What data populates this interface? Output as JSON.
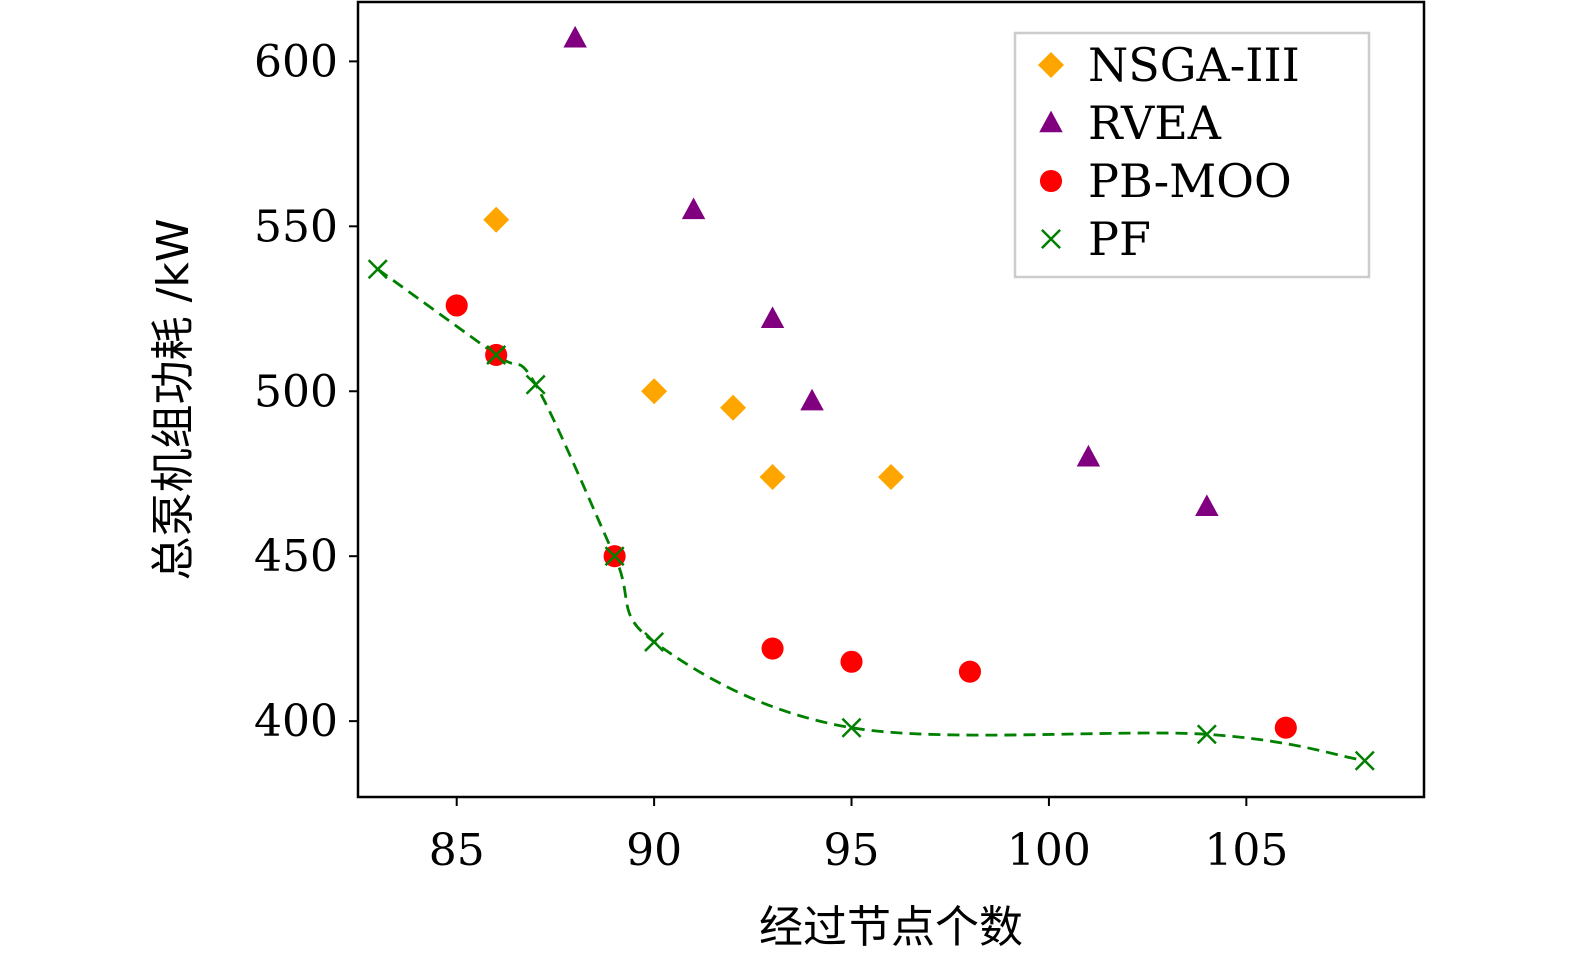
{
  "chart_data": {
    "type": "scatter",
    "xlabel": "经过节点个数",
    "ylabel": "总泵机组功耗 /kW",
    "xlim": [
      82.5,
      109.5
    ],
    "ylim": [
      377,
      618
    ],
    "xticks": [
      85,
      90,
      95,
      100,
      105
    ],
    "yticks": [
      400,
      450,
      500,
      550,
      600
    ],
    "grid": false,
    "legend_position": "top-right",
    "series": [
      {
        "name": "NSGA-III",
        "marker": "diamond",
        "color": "#ffa500",
        "points": [
          [
            86,
            552
          ],
          [
            90,
            500
          ],
          [
            92,
            495
          ],
          [
            93,
            474
          ],
          [
            96,
            474
          ]
        ]
      },
      {
        "name": "RVEA",
        "marker": "triangle",
        "color": "#800080",
        "points": [
          [
            88,
            607
          ],
          [
            91,
            555
          ],
          [
            93,
            522
          ],
          [
            94,
            497
          ],
          [
            101,
            480
          ],
          [
            104,
            465
          ]
        ]
      },
      {
        "name": "PB-MOO",
        "marker": "circle",
        "color": "#ff0000",
        "points": [
          [
            85,
            526
          ],
          [
            86,
            511
          ],
          [
            89,
            450
          ],
          [
            93,
            422
          ],
          [
            95,
            418
          ],
          [
            98,
            415
          ],
          [
            106,
            398
          ]
        ]
      },
      {
        "name": "PF",
        "marker": "x",
        "color": "#008000",
        "line": "dashed-smooth",
        "points": [
          [
            83,
            537
          ],
          [
            86,
            511
          ],
          [
            87,
            502
          ],
          [
            89,
            450
          ],
          [
            90,
            424
          ],
          [
            95,
            398
          ],
          [
            104,
            396
          ],
          [
            108,
            388
          ]
        ]
      }
    ]
  }
}
